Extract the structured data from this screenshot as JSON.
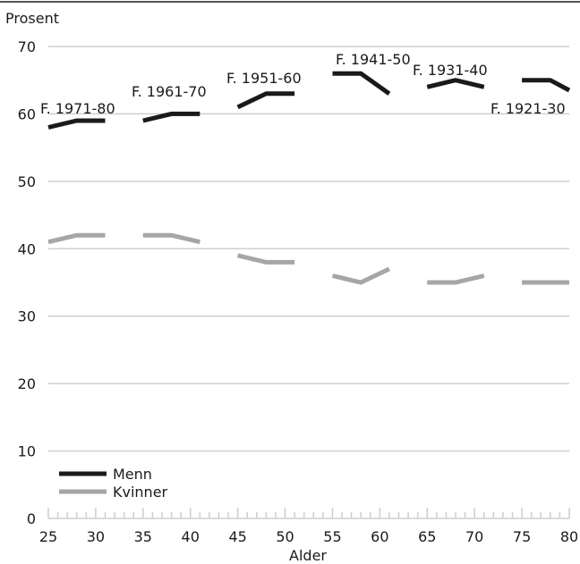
{
  "chart_data": {
    "type": "line",
    "ylabel": "Prosent",
    "xlabel": "Alder",
    "ylim": [
      0,
      70
    ],
    "xlim": [
      25,
      80
    ],
    "yticks": [
      0,
      10,
      20,
      30,
      40,
      50,
      60,
      70
    ],
    "xticks": [
      25,
      30,
      35,
      40,
      45,
      50,
      55,
      60,
      65,
      70,
      75,
      80
    ],
    "grid": "horizontal",
    "legend_position": "bottom-left",
    "colors": {
      "Menn": "#1a1a1a",
      "Kvinner": "#a6a6a6"
    },
    "series": [
      {
        "name": "Menn",
        "segments": [
          {
            "cohort": "F. 1971-80",
            "points": [
              [
                25,
                58
              ],
              [
                28,
                59
              ],
              [
                31,
                59
              ]
            ]
          },
          {
            "cohort": "F. 1961-70",
            "points": [
              [
                35,
                59
              ],
              [
                38,
                60
              ],
              [
                41,
                60
              ]
            ]
          },
          {
            "cohort": "F. 1951-60",
            "points": [
              [
                45,
                61
              ],
              [
                48,
                63
              ],
              [
                51,
                63
              ]
            ]
          },
          {
            "cohort": "F. 1941-50",
            "points": [
              [
                55,
                66
              ],
              [
                58,
                66
              ],
              [
                61,
                63
              ]
            ]
          },
          {
            "cohort": "F. 1931-40",
            "points": [
              [
                65,
                64
              ],
              [
                68,
                65
              ],
              [
                71,
                64
              ]
            ]
          },
          {
            "cohort": "F. 1921-30",
            "points": [
              [
                75,
                65
              ],
              [
                78,
                65
              ],
              [
                80,
                63.5
              ]
            ]
          }
        ]
      },
      {
        "name": "Kvinner",
        "segments": [
          {
            "cohort": "F. 1971-80",
            "points": [
              [
                25,
                41
              ],
              [
                28,
                42
              ],
              [
                31,
                42
              ]
            ]
          },
          {
            "cohort": "F. 1961-70",
            "points": [
              [
                35,
                42
              ],
              [
                38,
                42
              ],
              [
                41,
                41
              ]
            ]
          },
          {
            "cohort": "F. 1951-60",
            "points": [
              [
                45,
                39
              ],
              [
                48,
                38
              ],
              [
                51,
                38
              ]
            ]
          },
          {
            "cohort": "F. 1941-50",
            "points": [
              [
                55,
                36
              ],
              [
                58,
                35
              ],
              [
                61,
                37
              ]
            ]
          },
          {
            "cohort": "F. 1931-40",
            "points": [
              [
                65,
                35
              ],
              [
                68,
                35
              ],
              [
                71,
                36
              ]
            ]
          },
          {
            "cohort": "F. 1921-30",
            "points": [
              [
                75,
                35
              ],
              [
                78,
                35
              ],
              [
                80,
                35
              ]
            ]
          }
        ]
      }
    ],
    "annotations": [
      "F. 1971-80",
      "F. 1961-70",
      "F. 1951-60",
      "F. 1941-50",
      "F. 1931-40",
      "F. 1921-30"
    ]
  }
}
